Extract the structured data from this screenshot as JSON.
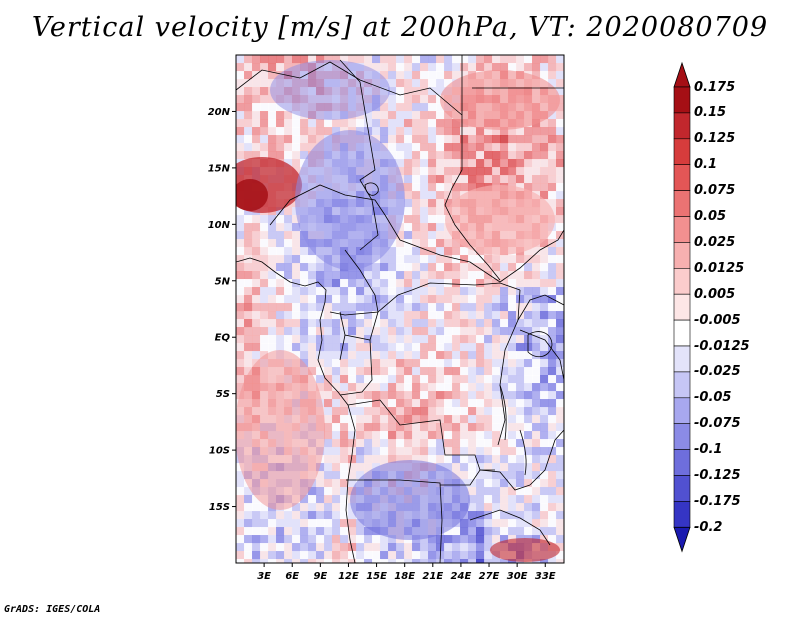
{
  "title": "Vertical velocity [m/s] at 200hPa, VT: 2020080709",
  "credit": "GrADS: IGES/COLA",
  "map": {
    "lon_range": [
      0,
      35
    ],
    "lat_range": [
      -20,
      25
    ],
    "lat_ticks": [
      {
        "value": 20,
        "label": "20N"
      },
      {
        "value": 15,
        "label": "15N"
      },
      {
        "value": 10,
        "label": "10N"
      },
      {
        "value": 5,
        "label": "5N"
      },
      {
        "value": 0,
        "label": "EQ"
      },
      {
        "value": -5,
        "label": "5S"
      },
      {
        "value": -10,
        "label": "10S"
      },
      {
        "value": -15,
        "label": "15S"
      }
    ],
    "lon_ticks": [
      {
        "value": 3,
        "label": "3E"
      },
      {
        "value": 6,
        "label": "6E"
      },
      {
        "value": 9,
        "label": "9E"
      },
      {
        "value": 12,
        "label": "12E"
      },
      {
        "value": 15,
        "label": "15E"
      },
      {
        "value": 18,
        "label": "18E"
      },
      {
        "value": 21,
        "label": "21E"
      },
      {
        "value": 24,
        "label": "24E"
      },
      {
        "value": 27,
        "label": "27E"
      },
      {
        "value": 30,
        "label": "30E"
      },
      {
        "value": 33,
        "label": "33E"
      }
    ],
    "border_color": "#000000"
  },
  "colorbar": {
    "levels": [
      {
        "label": "0.175",
        "color": "#a50f15"
      },
      {
        "label": "0.15",
        "color": "#c1272d"
      },
      {
        "label": "0.125",
        "color": "#d63c3c"
      },
      {
        "label": "0.1",
        "color": "#e35656"
      },
      {
        "label": "0.075",
        "color": "#eb7373"
      },
      {
        "label": "0.05",
        "color": "#f29090"
      },
      {
        "label": "0.025",
        "color": "#f7b0b0"
      },
      {
        "label": "0.0125",
        "color": "#fbcccc"
      },
      {
        "label": "0.005",
        "color": "#fde6e6"
      },
      {
        "label": "-0.005",
        "color": "#ffffff"
      },
      {
        "label": "-0.0125",
        "color": "#e3e3fa"
      },
      {
        "label": "-0.025",
        "color": "#c6c6f5"
      },
      {
        "label": "-0.05",
        "color": "#a8a8ef"
      },
      {
        "label": "-0.075",
        "color": "#8b8be6"
      },
      {
        "label": "-0.1",
        "color": "#6e6edc"
      },
      {
        "label": "-0.125",
        "color": "#5151d1"
      },
      {
        "label": "-0.175",
        "color": "#3535c4"
      },
      {
        "label": "-0.2",
        "color": "#1a1ab0"
      }
    ],
    "top_arrow_color": "#a50f15",
    "bottom_arrow_color": "#1a1ab0"
  }
}
